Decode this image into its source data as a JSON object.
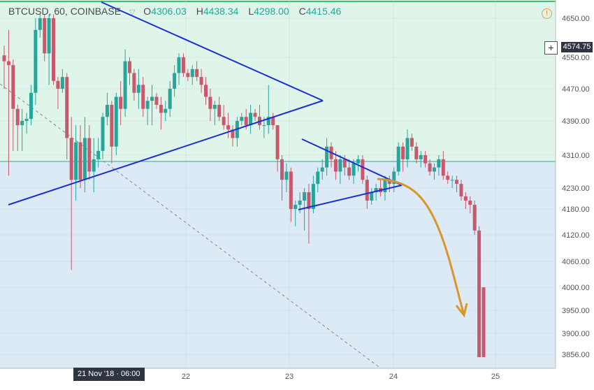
{
  "header": {
    "symbol": "BTCUSD, 60, COINBASE",
    "open_label": "O",
    "open": "4306.03",
    "high_label": "H",
    "high": "4438.34",
    "low_label": "L",
    "low": "4298.00",
    "close_label": "C",
    "close": "4415.46"
  },
  "crosshair": {
    "price_label": "4574.75",
    "time_label": "21 Nov '18 · 06:00"
  },
  "colors": {
    "up": "#26a69a",
    "down": "#c8586b",
    "trendline": "#1a2fd1",
    "arrow": "#d9962a",
    "upper_bg": "#dff5ea",
    "lower_bg": "#dbeaf5"
  },
  "chart_data": {
    "type": "candlestick",
    "symbol": "BTCUSD",
    "interval": "60",
    "exchange": "COINBASE",
    "y_ticks": [
      4650,
      4550,
      4470,
      4390,
      4310,
      4230,
      4180,
      4120,
      4060,
      4000,
      3950,
      3900,
      3856
    ],
    "y_tick_labels": [
      "4650.00",
      "4550.00",
      "4470.00",
      "4390.00",
      "4310.00",
      "4230.00",
      "4180.00",
      "4120.00",
      "4060.00",
      "4000.00",
      "3950.00",
      "3900.00",
      "3856.00"
    ],
    "x_ticks": [
      "22",
      "23",
      "24",
      "25"
    ],
    "horizontal_line": 4306,
    "ohlc": [
      [
        4555,
        4580,
        4470,
        4540
      ],
      [
        4540,
        4620,
        4260,
        4530
      ],
      [
        4530,
        4545,
        4320,
        4420
      ],
      [
        4420,
        4430,
        4320,
        4380
      ],
      [
        4380,
        4420,
        4320,
        4390
      ],
      [
        4390,
        4410,
        4360,
        4395
      ],
      [
        4395,
        4480,
        4380,
        4460
      ],
      [
        4460,
        4650,
        4430,
        4620
      ],
      [
        4620,
        4660,
        4600,
        4650
      ],
      [
        4650,
        4660,
        4540,
        4560
      ],
      [
        4560,
        4660,
        4480,
        4650
      ],
      [
        4650,
        4660,
        4480,
        4490
      ],
      [
        4490,
        4500,
        4420,
        4470
      ],
      [
        4470,
        4520,
        4460,
        4500
      ],
      [
        4500,
        4510,
        4300,
        4350
      ],
      [
        4350,
        4400,
        4040,
        4250
      ],
      [
        4250,
        4380,
        4200,
        4340
      ],
      [
        4340,
        4380,
        4230,
        4250
      ],
      [
        4250,
        4400,
        4220,
        4350
      ],
      [
        4350,
        4380,
        4250,
        4270
      ],
      [
        4270,
        4350,
        4220,
        4300
      ],
      [
        4300,
        4350,
        4280,
        4320
      ],
      [
        4320,
        4410,
        4300,
        4400
      ],
      [
        4400,
        4460,
        4380,
        4430
      ],
      [
        4430,
        4440,
        4290,
        4330
      ],
      [
        4330,
        4460,
        4310,
        4450
      ],
      [
        4450,
        4490,
        4380,
        4420
      ],
      [
        4420,
        4570,
        4400,
        4540
      ],
      [
        4540,
        4550,
        4480,
        4510
      ],
      [
        4510,
        4520,
        4440,
        4460
      ],
      [
        4460,
        4520,
        4420,
        4480
      ],
      [
        4480,
        4500,
        4400,
        4420
      ],
      [
        4420,
        4450,
        4380,
        4440
      ],
      [
        4440,
        4480,
        4380,
        4450
      ],
      [
        4450,
        4460,
        4420,
        4430
      ],
      [
        4430,
        4450,
        4370,
        4410
      ],
      [
        4410,
        4440,
        4390,
        4420
      ],
      [
        4420,
        4490,
        4400,
        4470
      ],
      [
        4470,
        4530,
        4450,
        4510
      ],
      [
        4510,
        4560,
        4480,
        4550
      ],
      [
        4550,
        4560,
        4500,
        4510
      ],
      [
        4510,
        4520,
        4490,
        4500
      ],
      [
        4500,
        4530,
        4480,
        4520
      ],
      [
        4520,
        4540,
        4490,
        4500
      ],
      [
        4500,
        4520,
        4460,
        4480
      ],
      [
        4480,
        4500,
        4430,
        4450
      ],
      [
        4450,
        4470,
        4390,
        4420
      ],
      [
        4420,
        4440,
        4380,
        4430
      ],
      [
        4430,
        4450,
        4390,
        4400
      ],
      [
        4400,
        4430,
        4370,
        4380
      ],
      [
        4380,
        4410,
        4350,
        4370
      ],
      [
        4370,
        4380,
        4330,
        4350
      ],
      [
        4350,
        4400,
        4330,
        4390
      ],
      [
        4390,
        4410,
        4380,
        4400
      ],
      [
        4400,
        4420,
        4370,
        4380
      ],
      [
        4380,
        4430,
        4360,
        4410
      ],
      [
        4410,
        4420,
        4390,
        4400
      ],
      [
        4400,
        4430,
        4370,
        4380
      ],
      [
        4380,
        4400,
        4350,
        4380
      ],
      [
        4380,
        4480,
        4360,
        4400
      ],
      [
        4400,
        4410,
        4370,
        4380
      ],
      [
        4380,
        4380,
        4270,
        4300
      ],
      [
        4300,
        4310,
        4200,
        4250
      ],
      [
        4250,
        4290,
        4220,
        4270
      ],
      [
        4270,
        4280,
        4150,
        4180
      ],
      [
        4180,
        4200,
        4140,
        4190
      ],
      [
        4190,
        4220,
        4170,
        4200
      ],
      [
        4200,
        4230,
        4130,
        4220
      ],
      [
        4220,
        4240,
        4100,
        4180
      ],
      [
        4180,
        4260,
        4170,
        4240
      ],
      [
        4240,
        4280,
        4220,
        4270
      ],
      [
        4270,
        4300,
        4250,
        4280
      ],
      [
        4280,
        4350,
        4260,
        4330
      ],
      [
        4330,
        4340,
        4280,
        4300
      ],
      [
        4300,
        4320,
        4250,
        4270
      ],
      [
        4270,
        4310,
        4240,
        4300
      ],
      [
        4300,
        4310,
        4260,
        4280
      ],
      [
        4280,
        4300,
        4250,
        4260
      ],
      [
        4260,
        4300,
        4240,
        4290
      ],
      [
        4290,
        4310,
        4270,
        4300
      ],
      [
        4300,
        4310,
        4240,
        4250
      ],
      [
        4250,
        4260,
        4180,
        4200
      ],
      [
        4200,
        4230,
        4190,
        4220
      ],
      [
        4220,
        4240,
        4200,
        4230
      ],
      [
        4230,
        4250,
        4210,
        4220
      ],
      [
        4220,
        4260,
        4200,
        4250
      ],
      [
        4250,
        4260,
        4220,
        4240
      ],
      [
        4240,
        4280,
        4220,
        4270
      ],
      [
        4270,
        4340,
        4260,
        4330
      ],
      [
        4330,
        4340,
        4270,
        4300
      ],
      [
        4300,
        4370,
        4280,
        4350
      ],
      [
        4350,
        4360,
        4320,
        4330
      ],
      [
        4330,
        4340,
        4290,
        4300
      ],
      [
        4300,
        4320,
        4280,
        4310
      ],
      [
        4310,
        4320,
        4280,
        4290
      ],
      [
        4290,
        4300,
        4260,
        4270
      ],
      [
        4270,
        4290,
        4250,
        4280
      ],
      [
        4280,
        4310,
        4260,
        4300
      ],
      [
        4300,
        4320,
        4250,
        4260
      ],
      [
        4260,
        4270,
        4240,
        4250
      ],
      [
        4250,
        4260,
        4230,
        4250
      ],
      [
        4250,
        4260,
        4220,
        4240
      ],
      [
        4240,
        4250,
        4200,
        4210
      ],
      [
        4210,
        4220,
        4180,
        4200
      ],
      [
        4200,
        4210,
        4170,
        4190
      ],
      [
        4190,
        4200,
        4120,
        4130
      ],
      [
        4130,
        4140,
        3850,
        3850
      ],
      [
        4000,
        4000,
        3850,
        3850
      ]
    ]
  }
}
